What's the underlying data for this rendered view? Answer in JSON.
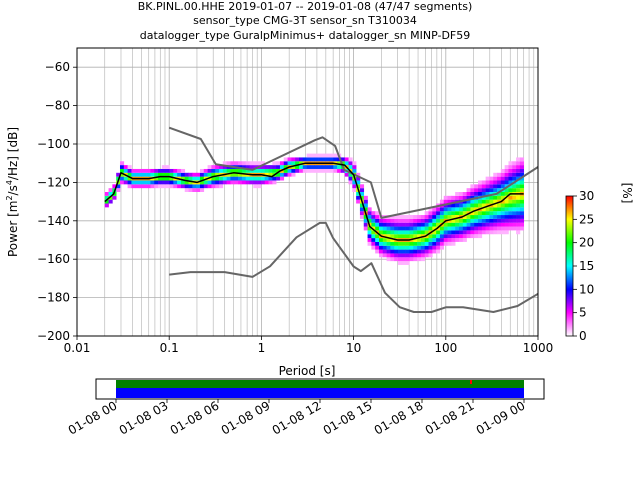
{
  "chart_data": {
    "type": "heatmap",
    "title_lines": [
      "BK.PINL.00.HHE   2019-01-07 -- 2019-01-08  (47/47 segments)",
      "sensor_type CMG-3T sensor_sn T310034",
      "datalogger_type GuralpMinimus+ datalogger_sn MINP-DF59"
    ],
    "xlabel": "Period [s]",
    "ylabel_parts": {
      "pre": "Power [m",
      "sup1": "2",
      "mid1": "/s",
      "sup2": "4",
      "post": "/Hz] [dB]"
    },
    "x_scale": "log",
    "xlim": [
      0.01,
      1000
    ],
    "ylim": [
      -200,
      -50
    ],
    "x_ticks": [
      {
        "v": 0.01,
        "label": "0.01"
      },
      {
        "v": 0.1,
        "label": "0.1"
      },
      {
        "v": 1,
        "label": "1"
      },
      {
        "v": 10,
        "label": "10"
      },
      {
        "v": 100,
        "label": "100"
      },
      {
        "v": 1000,
        "label": "1000"
      }
    ],
    "y_ticks": [
      {
        "v": -60,
        "label": "−60"
      },
      {
        "v": -80,
        "label": "−80"
      },
      {
        "v": -100,
        "label": "−100"
      },
      {
        "v": -120,
        "label": "−120"
      },
      {
        "v": -140,
        "label": "−140"
      },
      {
        "v": -160,
        "label": "−160"
      },
      {
        "v": -180,
        "label": "−180"
      },
      {
        "v": -200,
        "label": "−200"
      }
    ],
    "grid": true,
    "colorbar": {
      "label": "[%]",
      "range": [
        0,
        30
      ],
      "ticks": [
        {
          "v": 0,
          "label": "0"
        },
        {
          "v": 5,
          "label": "5"
        },
        {
          "v": 10,
          "label": "10"
        },
        {
          "v": 15,
          "label": "15"
        },
        {
          "v": 20,
          "label": "20"
        },
        {
          "v": 25,
          "label": "25"
        },
        {
          "v": 30,
          "label": "30"
        }
      ],
      "colors": [
        "#ffffff",
        "#ff00ff",
        "#0000ff",
        "#00ffff",
        "#00ff00",
        "#ffff00",
        "#ff0000"
      ]
    },
    "series": [
      {
        "role": "new-high-noise-model",
        "color": "#666666",
        "x": [
          0.1,
          0.22,
          0.32,
          0.8,
          3.8,
          4.6,
          6.3,
          7.9,
          15.4,
          20,
          354.8,
          1000
        ],
        "y": [
          -91.5,
          -97.4,
          -110.5,
          -113.5,
          -98.0,
          -96.5,
          -101.0,
          -113.5,
          -120.0,
          -138.5,
          -126.0,
          -112.0
        ]
      },
      {
        "role": "new-low-noise-model",
        "color": "#666666",
        "x": [
          0.1,
          0.17,
          0.4,
          0.8,
          1.24,
          2.4,
          4.3,
          5.0,
          6.0,
          10.0,
          12.0,
          15.6,
          21.9,
          31.6,
          45,
          70,
          101,
          154,
          328,
          600,
          1000
        ],
        "y": [
          -168.0,
          -166.7,
          -166.7,
          -169.2,
          -163.7,
          -148.6,
          -141.1,
          -141.1,
          -149.0,
          -163.8,
          -166.2,
          -162.1,
          -177.5,
          -185.0,
          -187.5,
          -187.5,
          -185.0,
          -185.0,
          -187.5,
          -184.4,
          -178.0
        ]
      },
      {
        "role": "mode",
        "color": "#000000",
        "x": [
          0.02,
          0.025,
          0.03,
          0.04,
          0.06,
          0.08,
          0.1,
          0.15,
          0.2,
          0.3,
          0.5,
          0.8,
          1.0,
          1.3,
          1.6,
          2.0,
          3.0,
          4.0,
          6.0,
          8.0,
          10,
          12,
          15,
          20,
          30,
          40,
          60,
          80,
          100,
          150,
          200,
          300,
          400,
          500,
          700
        ],
        "y": [
          -130,
          -126,
          -115,
          -118,
          -118,
          -117,
          -117,
          -119,
          -120,
          -117,
          -115,
          -116,
          -116,
          -117,
          -114,
          -112,
          -110,
          -110,
          -110,
          -111,
          -116,
          -128,
          -143,
          -148,
          -150,
          -150,
          -148,
          -144,
          -140,
          -138,
          -135,
          -132,
          -130,
          -126,
          -126
        ]
      }
    ],
    "density_band": {
      "x": [
        0.02,
        0.025,
        0.03,
        0.04,
        0.06,
        0.08,
        0.1,
        0.15,
        0.2,
        0.3,
        0.5,
        0.8,
        1.0,
        1.5,
        2.0,
        3.0,
        4.0,
        6.0,
        8.0,
        10,
        12,
        15,
        20,
        30,
        40,
        60,
        80,
        100,
        150,
        200,
        300,
        400,
        500,
        700
      ],
      "center": [
        -130,
        -126,
        -115,
        -118,
        -118,
        -117,
        -117,
        -119,
        -120,
        -117,
        -115,
        -116,
        -116,
        -115,
        -112,
        -110,
        -110,
        -110,
        -111,
        -116,
        -128,
        -143,
        -148,
        -150,
        -150,
        -148,
        -144,
        -140,
        -138,
        -135,
        -132,
        -130,
        -128,
        -126
      ],
      "half_width": [
        4,
        4,
        6,
        5,
        5,
        5,
        5,
        5,
        5,
        6,
        6,
        6,
        6,
        5,
        5,
        4,
        4,
        4,
        5,
        7,
        9,
        10,
        11,
        12,
        12,
        12,
        13,
        13,
        13,
        14,
        15,
        16,
        18,
        20
      ]
    },
    "timeline": {
      "ticks": [
        "01-08 00",
        "01-08 03",
        "01-08 06",
        "01-08 09",
        "01-08 12",
        "01-08 15",
        "01-08 18",
        "01-08 21",
        "01-09 00"
      ],
      "colors": {
        "data": "#0000ff",
        "used": "#008000",
        "gap": "#ffffff",
        "marker": "#ff0000"
      }
    }
  }
}
